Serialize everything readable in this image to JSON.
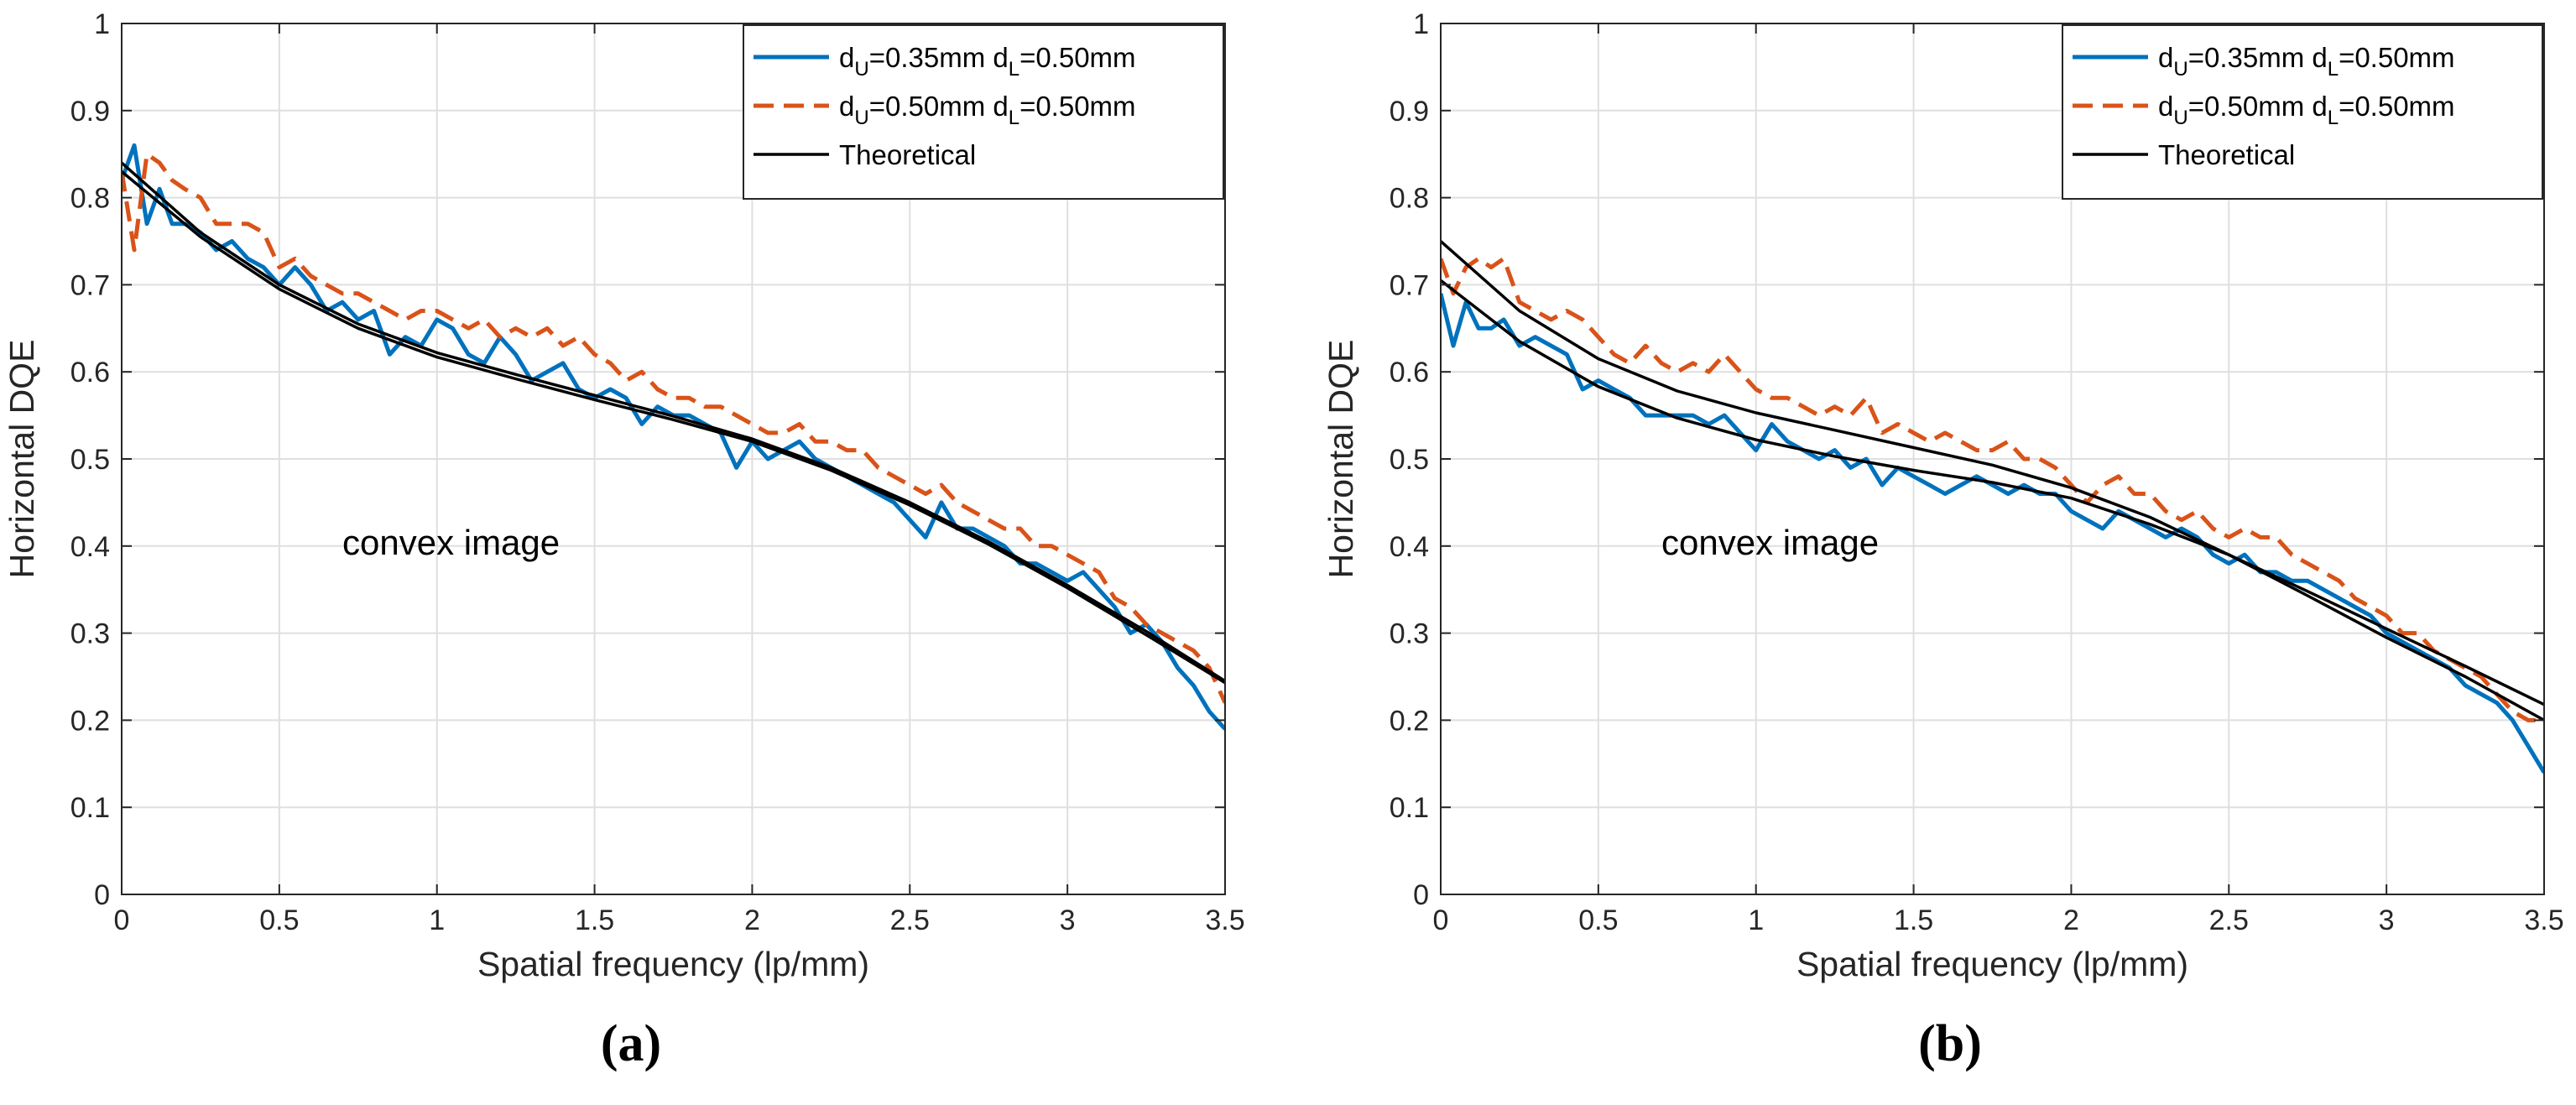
{
  "chart_data": [
    {
      "type": "line",
      "panel_label": "(a)",
      "xlabel": "Spatial frequency (lp/mm)",
      "ylabel": "Horizontal DQE",
      "xlim": [
        0,
        3.5
      ],
      "ylim": [
        0,
        1
      ],
      "xticks": [
        "0",
        "0.5",
        "1",
        "1.5",
        "2",
        "2.5",
        "3",
        "3.5"
      ],
      "yticks": [
        "0",
        "0.1",
        "0.2",
        "0.3",
        "0.4",
        "0.5",
        "0.6",
        "0.7",
        "0.8",
        "0.9",
        "1"
      ],
      "grid": true,
      "legend_position": "top-right",
      "annotation": "convex image",
      "series": [
        {
          "name_main": "d",
          "sub1": "U",
          "mid": "=0.35mm d",
          "sub2": "L",
          "tail": "=0.50mm",
          "color": "#0072BD",
          "style": "solid",
          "x": [
            0,
            0.04,
            0.08,
            0.12,
            0.16,
            0.2,
            0.25,
            0.3,
            0.35,
            0.4,
            0.45,
            0.5,
            0.55,
            0.6,
            0.65,
            0.7,
            0.75,
            0.8,
            0.85,
            0.9,
            0.95,
            1.0,
            1.05,
            1.1,
            1.15,
            1.2,
            1.25,
            1.3,
            1.35,
            1.4,
            1.45,
            1.5,
            1.55,
            1.6,
            1.65,
            1.7,
            1.75,
            1.8,
            1.85,
            1.9,
            1.95,
            2.0,
            2.05,
            2.1,
            2.15,
            2.2,
            2.25,
            2.3,
            2.35,
            2.4,
            2.45,
            2.5,
            2.55,
            2.6,
            2.65,
            2.7,
            2.75,
            2.8,
            2.85,
            2.9,
            2.95,
            3.0,
            3.05,
            3.1,
            3.15,
            3.2,
            3.25,
            3.3,
            3.35,
            3.4,
            3.45,
            3.5
          ],
          "y": [
            0.82,
            0.86,
            0.77,
            0.81,
            0.77,
            0.77,
            0.76,
            0.74,
            0.75,
            0.73,
            0.72,
            0.7,
            0.72,
            0.7,
            0.67,
            0.68,
            0.66,
            0.67,
            0.62,
            0.64,
            0.63,
            0.66,
            0.65,
            0.62,
            0.61,
            0.64,
            0.62,
            0.59,
            0.6,
            0.61,
            0.58,
            0.57,
            0.58,
            0.57,
            0.54,
            0.56,
            0.55,
            0.55,
            0.54,
            0.53,
            0.49,
            0.52,
            0.5,
            0.51,
            0.52,
            0.5,
            0.49,
            0.48,
            0.47,
            0.46,
            0.45,
            0.43,
            0.41,
            0.45,
            0.42,
            0.42,
            0.41,
            0.4,
            0.38,
            0.38,
            0.37,
            0.36,
            0.37,
            0.35,
            0.33,
            0.3,
            0.31,
            0.29,
            0.26,
            0.24,
            0.21,
            0.19
          ]
        },
        {
          "name_main": "d",
          "sub1": "U",
          "mid": "=0.50mm d",
          "sub2": "L",
          "tail": "=0.50mm",
          "color": "#D95319",
          "style": "dashed",
          "x": [
            0,
            0.04,
            0.08,
            0.12,
            0.16,
            0.2,
            0.25,
            0.3,
            0.35,
            0.4,
            0.45,
            0.5,
            0.55,
            0.6,
            0.65,
            0.7,
            0.75,
            0.8,
            0.85,
            0.9,
            0.95,
            1.0,
            1.05,
            1.1,
            1.15,
            1.2,
            1.25,
            1.3,
            1.35,
            1.4,
            1.45,
            1.5,
            1.55,
            1.6,
            1.65,
            1.7,
            1.75,
            1.8,
            1.85,
            1.9,
            1.95,
            2.0,
            2.05,
            2.1,
            2.15,
            2.2,
            2.25,
            2.3,
            2.35,
            2.4,
            2.45,
            2.5,
            2.55,
            2.6,
            2.65,
            2.7,
            2.75,
            2.8,
            2.85,
            2.9,
            2.95,
            3.0,
            3.05,
            3.1,
            3.15,
            3.2,
            3.25,
            3.3,
            3.35,
            3.4,
            3.45,
            3.5
          ],
          "y": [
            0.83,
            0.74,
            0.85,
            0.84,
            0.82,
            0.81,
            0.8,
            0.77,
            0.77,
            0.77,
            0.76,
            0.72,
            0.73,
            0.71,
            0.7,
            0.69,
            0.69,
            0.68,
            0.67,
            0.66,
            0.67,
            0.67,
            0.66,
            0.65,
            0.66,
            0.64,
            0.65,
            0.64,
            0.65,
            0.63,
            0.64,
            0.62,
            0.61,
            0.59,
            0.6,
            0.58,
            0.57,
            0.57,
            0.56,
            0.56,
            0.55,
            0.54,
            0.53,
            0.53,
            0.54,
            0.52,
            0.52,
            0.51,
            0.51,
            0.49,
            0.48,
            0.47,
            0.46,
            0.47,
            0.45,
            0.44,
            0.43,
            0.42,
            0.42,
            0.4,
            0.4,
            0.39,
            0.38,
            0.37,
            0.34,
            0.33,
            0.31,
            0.3,
            0.29,
            0.28,
            0.26,
            0.22
          ]
        },
        {
          "name_main": "Theoretical",
          "sub1": "",
          "mid": "",
          "sub2": "",
          "tail": "",
          "color": "#000000",
          "style": "solid",
          "x": [
            0,
            0.25,
            0.5,
            0.75,
            1.0,
            1.25,
            1.5,
            1.75,
            2.0,
            2.25,
            2.5,
            2.75,
            3.0,
            3.25,
            3.5
          ],
          "y": [
            0.84,
            0.76,
            0.7,
            0.655,
            0.622,
            0.597,
            0.573,
            0.549,
            0.523,
            0.49,
            0.45,
            0.405,
            0.355,
            0.302,
            0.245
          ]
        },
        {
          "name_main": "",
          "sub1": "",
          "mid": "",
          "sub2": "",
          "tail": "",
          "color": "#000000",
          "style": "solid",
          "x": [
            0,
            0.25,
            0.5,
            0.75,
            1.0,
            1.25,
            1.5,
            1.75,
            2.0,
            2.25,
            2.5,
            2.75,
            3.0,
            3.25,
            3.5
          ],
          "y": [
            0.83,
            0.755,
            0.695,
            0.65,
            0.617,
            0.592,
            0.568,
            0.545,
            0.52,
            0.487,
            0.447,
            0.402,
            0.352,
            0.298,
            0.243
          ]
        }
      ]
    },
    {
      "type": "line",
      "panel_label": "(b)",
      "xlabel": "Spatial frequency (lp/mm)",
      "ylabel": "Horizontal DQE",
      "xlim": [
        0,
        3.5
      ],
      "ylim": [
        0,
        1
      ],
      "xticks": [
        "0",
        "0.5",
        "1",
        "1.5",
        "2",
        "2.5",
        "3",
        "3.5"
      ],
      "yticks": [
        "0",
        "0.1",
        "0.2",
        "0.3",
        "0.4",
        "0.5",
        "0.6",
        "0.7",
        "0.8",
        "0.9",
        "1"
      ],
      "grid": true,
      "legend_position": "top-right",
      "annotation": "convex image",
      "series": [
        {
          "name_main": "d",
          "sub1": "U",
          "mid": "=0.35mm d",
          "sub2": "L",
          "tail": "=0.50mm",
          "color": "#0072BD",
          "style": "solid",
          "x": [
            0,
            0.04,
            0.08,
            0.12,
            0.16,
            0.2,
            0.25,
            0.3,
            0.35,
            0.4,
            0.45,
            0.5,
            0.55,
            0.6,
            0.65,
            0.7,
            0.75,
            0.8,
            0.85,
            0.9,
            0.95,
            1.0,
            1.05,
            1.1,
            1.15,
            1.2,
            1.25,
            1.3,
            1.35,
            1.4,
            1.45,
            1.5,
            1.55,
            1.6,
            1.65,
            1.7,
            1.75,
            1.8,
            1.85,
            1.9,
            1.95,
            2.0,
            2.05,
            2.1,
            2.15,
            2.2,
            2.25,
            2.3,
            2.35,
            2.4,
            2.45,
            2.5,
            2.55,
            2.6,
            2.65,
            2.7,
            2.75,
            2.8,
            2.85,
            2.9,
            2.95,
            3.0,
            3.05,
            3.1,
            3.15,
            3.2,
            3.25,
            3.3,
            3.35,
            3.4,
            3.45,
            3.5
          ],
          "y": [
            0.69,
            0.63,
            0.68,
            0.65,
            0.65,
            0.66,
            0.63,
            0.64,
            0.63,
            0.62,
            0.58,
            0.59,
            0.58,
            0.57,
            0.55,
            0.55,
            0.55,
            0.55,
            0.54,
            0.55,
            0.53,
            0.51,
            0.54,
            0.52,
            0.51,
            0.5,
            0.51,
            0.49,
            0.5,
            0.47,
            0.49,
            0.48,
            0.47,
            0.46,
            0.47,
            0.48,
            0.47,
            0.46,
            0.47,
            0.46,
            0.46,
            0.44,
            0.43,
            0.42,
            0.44,
            0.43,
            0.42,
            0.41,
            0.42,
            0.41,
            0.39,
            0.38,
            0.39,
            0.37,
            0.37,
            0.36,
            0.36,
            0.35,
            0.34,
            0.33,
            0.32,
            0.3,
            0.29,
            0.28,
            0.27,
            0.26,
            0.24,
            0.23,
            0.22,
            0.2,
            0.17,
            0.14
          ]
        },
        {
          "name_main": "d",
          "sub1": "U",
          "mid": "=0.50mm d",
          "sub2": "L",
          "tail": "=0.50mm",
          "color": "#D95319",
          "style": "dashed",
          "x": [
            0,
            0.04,
            0.08,
            0.12,
            0.16,
            0.2,
            0.25,
            0.3,
            0.35,
            0.4,
            0.45,
            0.5,
            0.55,
            0.6,
            0.65,
            0.7,
            0.75,
            0.8,
            0.85,
            0.9,
            0.95,
            1.0,
            1.05,
            1.1,
            1.15,
            1.2,
            1.25,
            1.3,
            1.35,
            1.4,
            1.45,
            1.5,
            1.55,
            1.6,
            1.65,
            1.7,
            1.75,
            1.8,
            1.85,
            1.9,
            1.95,
            2.0,
            2.05,
            2.1,
            2.15,
            2.2,
            2.25,
            2.3,
            2.35,
            2.4,
            2.45,
            2.5,
            2.55,
            2.6,
            2.65,
            2.7,
            2.75,
            2.8,
            2.85,
            2.9,
            2.95,
            3.0,
            3.05,
            3.1,
            3.15,
            3.2,
            3.25,
            3.3,
            3.35,
            3.4,
            3.45,
            3.5
          ],
          "y": [
            0.73,
            0.69,
            0.72,
            0.73,
            0.72,
            0.73,
            0.68,
            0.67,
            0.66,
            0.67,
            0.66,
            0.64,
            0.62,
            0.61,
            0.63,
            0.61,
            0.6,
            0.61,
            0.6,
            0.62,
            0.6,
            0.58,
            0.57,
            0.57,
            0.56,
            0.55,
            0.56,
            0.55,
            0.57,
            0.53,
            0.54,
            0.53,
            0.52,
            0.53,
            0.52,
            0.51,
            0.51,
            0.52,
            0.5,
            0.5,
            0.49,
            0.47,
            0.45,
            0.47,
            0.48,
            0.46,
            0.46,
            0.44,
            0.43,
            0.44,
            0.42,
            0.41,
            0.42,
            0.41,
            0.41,
            0.39,
            0.38,
            0.37,
            0.36,
            0.34,
            0.33,
            0.32,
            0.3,
            0.3,
            0.28,
            0.27,
            0.26,
            0.25,
            0.23,
            0.21,
            0.2,
            0.2
          ]
        },
        {
          "name_main": "Theoretical",
          "sub1": "",
          "mid": "",
          "sub2": "",
          "tail": "",
          "color": "#000000",
          "style": "solid",
          "x": [
            0,
            0.25,
            0.5,
            0.75,
            1.0,
            1.25,
            1.5,
            1.75,
            2.0,
            2.25,
            2.5,
            2.75,
            3.0,
            3.25,
            3.5
          ],
          "y": [
            0.75,
            0.67,
            0.615,
            0.578,
            0.553,
            0.533,
            0.513,
            0.493,
            0.467,
            0.433,
            0.39,
            0.343,
            0.295,
            0.25,
            0.2
          ]
        },
        {
          "name_main": "",
          "sub1": "",
          "mid": "",
          "sub2": "",
          "tail": "",
          "color": "#000000",
          "style": "solid",
          "x": [
            0,
            0.25,
            0.5,
            0.75,
            1.0,
            1.25,
            1.5,
            1.75,
            2.0,
            2.25,
            2.5,
            2.75,
            3.0,
            3.25,
            3.5
          ],
          "y": [
            0.705,
            0.635,
            0.583,
            0.547,
            0.522,
            0.503,
            0.487,
            0.473,
            0.455,
            0.425,
            0.39,
            0.348,
            0.305,
            0.262,
            0.218
          ]
        }
      ]
    }
  ]
}
